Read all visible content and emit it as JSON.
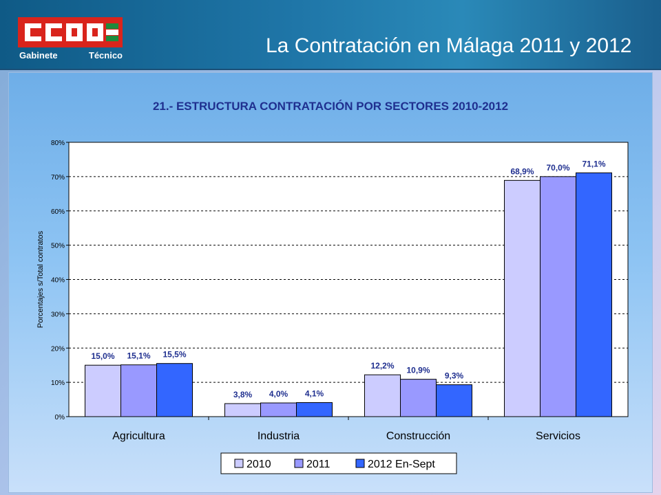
{
  "header": {
    "title": "La Contratación en Málaga 2011 y 2012",
    "logo_text": "CCOO",
    "subtitle_left": "Gabinete",
    "subtitle_right": "Técnico"
  },
  "colors": {
    "series_2010": "#ccccff",
    "series_2011": "#9999ff",
    "series_2012": "#3366ff",
    "label_text": "#1f2f8f",
    "logo_red": "#d9241c",
    "andalucia_green": "#1f8a3c"
  },
  "chart_data": {
    "type": "bar",
    "title": "21.- ESTRUCTURA CONTRATACIÓN POR SECTORES 2010-2012",
    "xlabel": "",
    "ylabel": "Porcentajes s/Total contratos",
    "ylim": [
      0,
      80
    ],
    "yticks": [
      0,
      10,
      20,
      30,
      40,
      50,
      60,
      70,
      80
    ],
    "ytick_labels": [
      "0%",
      "10%",
      "20%",
      "30%",
      "40%",
      "50%",
      "60%",
      "70%",
      "80%"
    ],
    "grid": true,
    "legend_position": "bottom",
    "categories": [
      "Agricultura",
      "Industria",
      "Construcción",
      "Servicios"
    ],
    "series": [
      {
        "name": "2010",
        "values": [
          15.0,
          3.8,
          12.2,
          68.9
        ],
        "labels": [
          "15,0%",
          "3,8%",
          "12,2%",
          "68,9%"
        ]
      },
      {
        "name": "2011",
        "values": [
          15.1,
          4.0,
          10.9,
          70.0
        ],
        "labels": [
          "15,1%",
          "4,0%",
          "10,9%",
          "70,0%"
        ]
      },
      {
        "name": "2012 En-Sept",
        "values": [
          15.5,
          4.1,
          9.3,
          71.1
        ],
        "labels": [
          "15,5%",
          "4,1%",
          "9,3%",
          "71,1%"
        ]
      }
    ]
  }
}
